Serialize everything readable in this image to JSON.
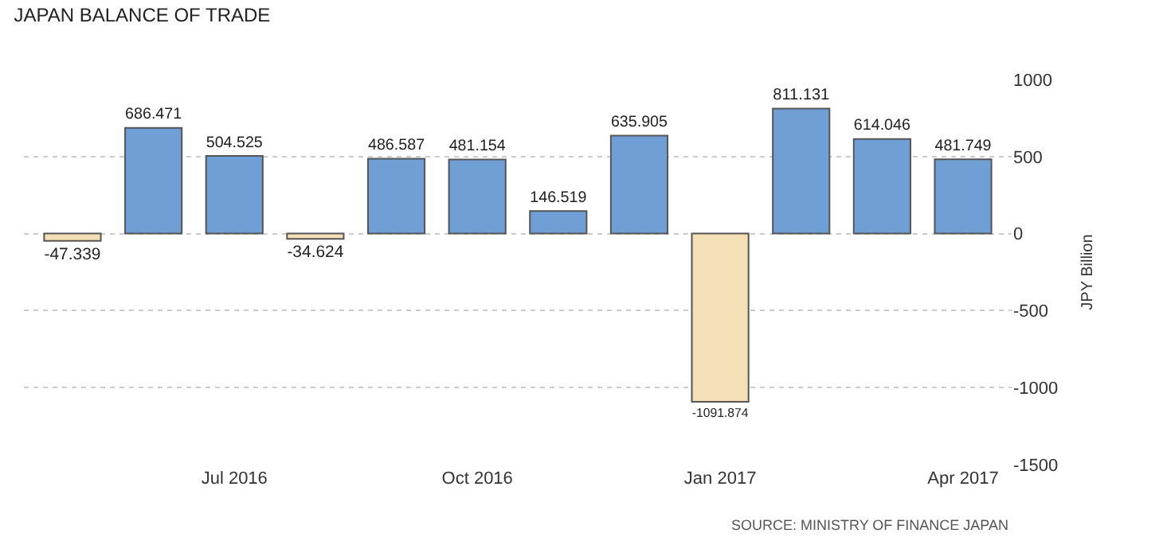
{
  "chart_data": {
    "type": "bar",
    "title": "JAPAN BALANCE OF TRADE",
    "ylabel": "JPY Billion",
    "categories": [
      null,
      null,
      "Jul 2016",
      null,
      null,
      "Oct 2016",
      null,
      null,
      "Jan 2017",
      null,
      null,
      "Apr 2017"
    ],
    "values": [
      -47.339,
      686.471,
      504.525,
      -34.624,
      486.587,
      481.154,
      146.519,
      635.905,
      -1091.874,
      811.131,
      614.046,
      481.749
    ],
    "colors": [
      "#f5dfb6",
      "#6f9fd4",
      "#6f9fd4",
      "#f5dfb6",
      "#6f9fd4",
      "#6f9fd4",
      "#6f9fd4",
      "#6f9fd4",
      "#f5dfb6",
      "#6f9fd4",
      "#6f9fd4",
      "#6f9fd4"
    ],
    "data_labels": true,
    "ylim": [
      -1500,
      1000
    ],
    "yticks": [
      -1500,
      -1000,
      -500,
      0,
      500,
      1000
    ],
    "grid": "y",
    "annotations": [
      "SOURCE: MINISTRY OF FINANCE JAPAN"
    ]
  }
}
